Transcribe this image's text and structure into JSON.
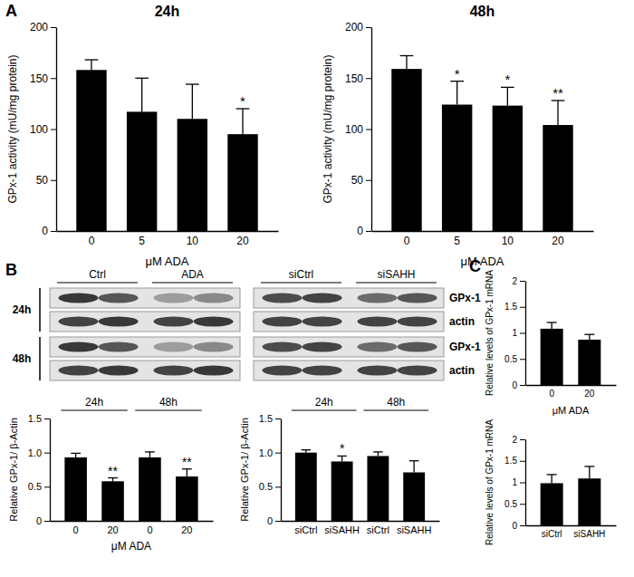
{
  "panel_labels": [
    "A",
    "B",
    "C"
  ],
  "blot": {
    "groups": [
      "Ctrl",
      "ADA",
      "siCtrl",
      "siSAHH"
    ],
    "rows": [
      {
        "time": "24h",
        "bands": [
          "GPx-1",
          "actin"
        ]
      },
      {
        "time": "48h",
        "bands": [
          "GPx-1",
          "actin"
        ]
      }
    ]
  },
  "chart_data": [
    {
      "type": "bar",
      "title": "24h",
      "categories": [
        "0",
        "5",
        "10",
        "20"
      ],
      "values": [
        158,
        117,
        110,
        95
      ],
      "errors": [
        10,
        33,
        34,
        25
      ],
      "annotations": [
        null,
        null,
        null,
        "*"
      ],
      "color": "#000000",
      "ylim": [
        0,
        200
      ],
      "yticks": [
        0,
        50,
        100,
        150,
        200
      ],
      "y_label": "GPx-1 activity (mU/mg protein)",
      "x_label": "μM ADA"
    },
    {
      "type": "bar",
      "title": "48h",
      "categories": [
        "0",
        "5",
        "10",
        "20"
      ],
      "values": [
        159,
        124,
        123,
        104
      ],
      "errors": [
        13,
        23,
        18,
        24
      ],
      "annotations": [
        null,
        "*",
        "*",
        "**"
      ],
      "color": "#000000",
      "ylim": [
        0,
        200
      ],
      "yticks": [
        0,
        50,
        100,
        150,
        200
      ],
      "y_label": "GPx-1 activity (mU/mg protein)",
      "x_label": "μM ADA"
    },
    {
      "type": "bar",
      "groups": [
        "24h",
        "48h"
      ],
      "categories": [
        "0",
        "20",
        "0",
        "20"
      ],
      "values": [
        0.93,
        0.58,
        0.93,
        0.65
      ],
      "errors": [
        0.06,
        0.05,
        0.08,
        0.11
      ],
      "annotations": [
        null,
        "**",
        null,
        "**"
      ],
      "color": "#000000",
      "ylim": [
        0,
        1.5
      ],
      "yticks": [
        0,
        0.5,
        {
          "value": 1,
          "label": "1.0"
        },
        1.5
      ],
      "y_label": "Relative GPx-1/ β-Actin",
      "x_label": "μM ADA"
    },
    {
      "type": "bar",
      "groups": [
        "24h",
        "48h"
      ],
      "categories": [
        "siCtrl",
        "siSAHH",
        "siCtrl",
        "siSAHH"
      ],
      "values": [
        1.0,
        0.87,
        0.95,
        0.71
      ],
      "errors": [
        0.04,
        0.08,
        0.06,
        0.17
      ],
      "annotations": [
        null,
        "*",
        null,
        null
      ],
      "color": "#000000",
      "ylim": [
        0,
        1.5
      ],
      "yticks": [
        0,
        0.5,
        {
          "value": 1,
          "label": "1.0"
        },
        1.5
      ],
      "y_label": "Relative GPx-1/ β-Actin"
    },
    {
      "type": "bar",
      "categories": [
        "0",
        "20"
      ],
      "values": [
        1.08,
        0.87
      ],
      "errors": [
        0.12,
        0.1
      ],
      "color": "#000000",
      "ylim": [
        0,
        2
      ],
      "yticks": [
        0,
        0.5,
        1,
        1.5,
        2
      ],
      "y_label": "Relative levels of GPx-1 mRNA",
      "x_label": "μM ADA"
    },
    {
      "type": "bar",
      "categories": [
        "siCtrl",
        "siSAHH"
      ],
      "values": [
        0.98,
        1.09
      ],
      "errors": [
        0.2,
        0.28
      ],
      "color": "#000000",
      "ylim": [
        0,
        2
      ],
      "yticks": [
        0,
        0.5,
        1,
        1.5,
        2
      ],
      "y_label": "Relative levels of GPx-1 mRNA"
    }
  ]
}
